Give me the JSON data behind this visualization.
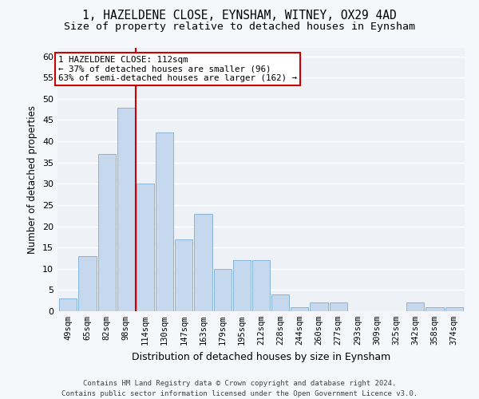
{
  "title": "1, HAZELDENE CLOSE, EYNSHAM, WITNEY, OX29 4AD",
  "subtitle": "Size of property relative to detached houses in Eynsham",
  "xlabel": "Distribution of detached houses by size in Eynsham",
  "ylabel": "Number of detached properties",
  "categories": [
    "49sqm",
    "65sqm",
    "82sqm",
    "98sqm",
    "114sqm",
    "130sqm",
    "147sqm",
    "163sqm",
    "179sqm",
    "195sqm",
    "212sqm",
    "228sqm",
    "244sqm",
    "260sqm",
    "277sqm",
    "293sqm",
    "309sqm",
    "325sqm",
    "342sqm",
    "358sqm",
    "374sqm"
  ],
  "values": [
    3,
    13,
    37,
    48,
    30,
    42,
    17,
    23,
    10,
    12,
    12,
    4,
    1,
    2,
    2,
    0,
    0,
    0,
    2,
    1,
    1
  ],
  "bar_color": "#c5d8ed",
  "bar_edge_color": "#7aaed6",
  "plot_bg_color": "#eef2f7",
  "fig_bg_color": "#f5f7fa",
  "grid_color": "#ffffff",
  "vline_x": 3.52,
  "vline_color": "#cc0000",
  "annotation_box_text": "1 HAZELDENE CLOSE: 112sqm\n← 37% of detached houses are smaller (96)\n63% of semi-detached houses are larger (162) →",
  "annotation_box_color": "#cc0000",
  "ylim": [
    0,
    62
  ],
  "yticks": [
    0,
    5,
    10,
    15,
    20,
    25,
    30,
    35,
    40,
    45,
    50,
    55,
    60
  ],
  "footer_line1": "Contains HM Land Registry data © Crown copyright and database right 2024.",
  "footer_line2": "Contains public sector information licensed under the Open Government Licence v3.0.",
  "title_fontsize": 10.5,
  "subtitle_fontsize": 9.5,
  "ylabel_fontsize": 8.5,
  "xlabel_fontsize": 9,
  "annotation_fontsize": 7.8,
  "tick_fontsize": 7.5,
  "footer_fontsize": 6.5
}
